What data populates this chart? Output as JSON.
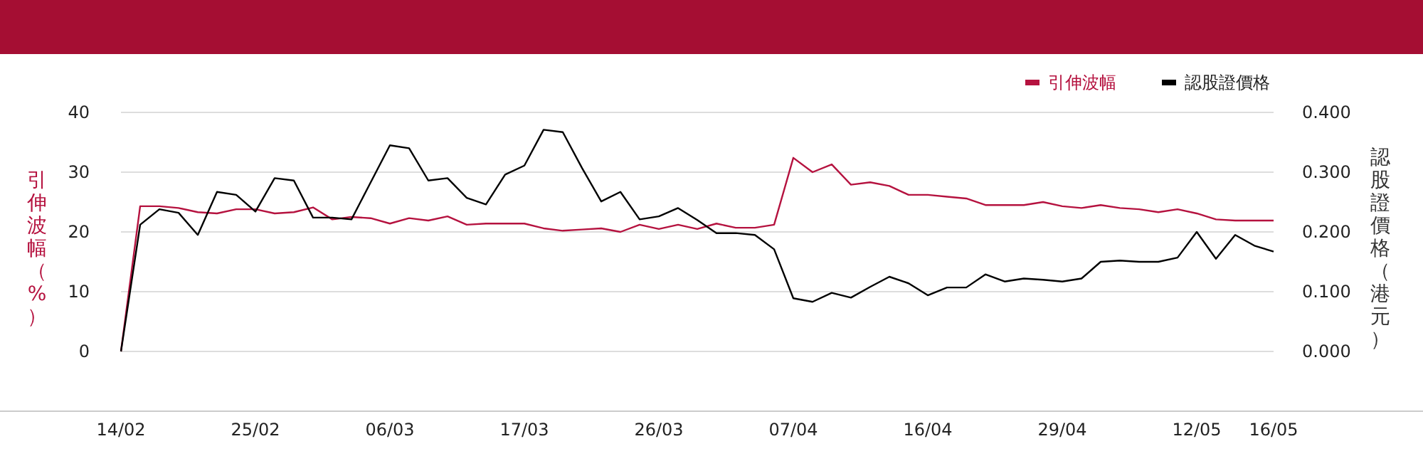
{
  "chart_data": {
    "type": "line",
    "ylabel": "引伸波幅（%）",
    "y2label": "認股證價格（港元）",
    "categories": [
      "14/02",
      null,
      null,
      null,
      null,
      null,
      null,
      "25/02",
      null,
      null,
      null,
      null,
      null,
      null,
      "06/03",
      null,
      null,
      null,
      null,
      null,
      null,
      "17/03",
      null,
      null,
      null,
      null,
      null,
      null,
      "26/03",
      null,
      null,
      null,
      null,
      null,
      null,
      "07/04",
      null,
      null,
      null,
      null,
      null,
      null,
      "16/04",
      null,
      null,
      null,
      null,
      null,
      null,
      "29/04",
      null,
      null,
      null,
      null,
      null,
      null,
      "12/05",
      null,
      null,
      null,
      "16/05"
    ],
    "series": [
      {
        "name": "引伸波幅",
        "color": "#b5123f",
        "values": [
          0,
          24.3,
          24.3,
          24.0,
          23.3,
          23.1,
          23.8,
          23.8,
          23.1,
          23.3,
          24.1,
          22.1,
          22.5,
          22.3,
          21.4,
          22.3,
          21.9,
          22.6,
          21.2,
          21.4,
          21.4,
          21.4,
          20.6,
          20.2,
          20.4,
          20.6,
          20.0,
          21.2,
          20.5,
          21.2,
          20.5,
          21.4,
          20.7,
          20.7,
          21.2,
          32.4,
          30.0,
          31.3,
          27.9,
          28.3,
          27.7,
          26.2,
          26.2,
          25.9,
          25.6,
          24.5,
          24.5,
          24.5,
          25.0,
          24.3,
          24.0,
          24.5,
          24.0,
          23.8,
          23.3,
          23.8,
          23.1,
          22.1,
          21.9,
          21.9,
          21.9
        ]
      },
      {
        "name": "認股證價格",
        "color": "#000000",
        "axis": "y2",
        "values": [
          0,
          0.212,
          0.238,
          0.232,
          0.195,
          0.267,
          0.262,
          0.234,
          0.29,
          0.286,
          0.224,
          0.224,
          0.221,
          0.283,
          0.345,
          0.34,
          0.286,
          0.29,
          0.257,
          0.246,
          0.296,
          0.311,
          0.371,
          0.367,
          0.307,
          0.251,
          0.267,
          0.221,
          0.226,
          0.24,
          0.22,
          0.198,
          0.198,
          0.195,
          0.171,
          0.089,
          0.083,
          0.098,
          0.09,
          0.108,
          0.125,
          0.114,
          0.094,
          0.107,
          0.107,
          0.129,
          0.117,
          0.122,
          0.12,
          0.117,
          0.122,
          0.15,
          0.152,
          0.15,
          0.15,
          0.157,
          0.2,
          0.155,
          0.195,
          0.177,
          0.167
        ]
      }
    ],
    "ylim": [
      -10,
      40
    ],
    "yticks": [
      0,
      10,
      20,
      30,
      40
    ],
    "y2lim": [
      -0.1,
      0.4
    ],
    "y2ticks": [
      {
        "value": 0,
        "label": "0.000"
      },
      {
        "value": 0.1,
        "label": "0.100"
      },
      {
        "value": 0.2,
        "label": "0.200"
      },
      {
        "value": 0.3,
        "label": "0.300"
      },
      {
        "value": 0.4,
        "label": "0.400"
      }
    ],
    "grid": "y",
    "legend": "top right"
  }
}
